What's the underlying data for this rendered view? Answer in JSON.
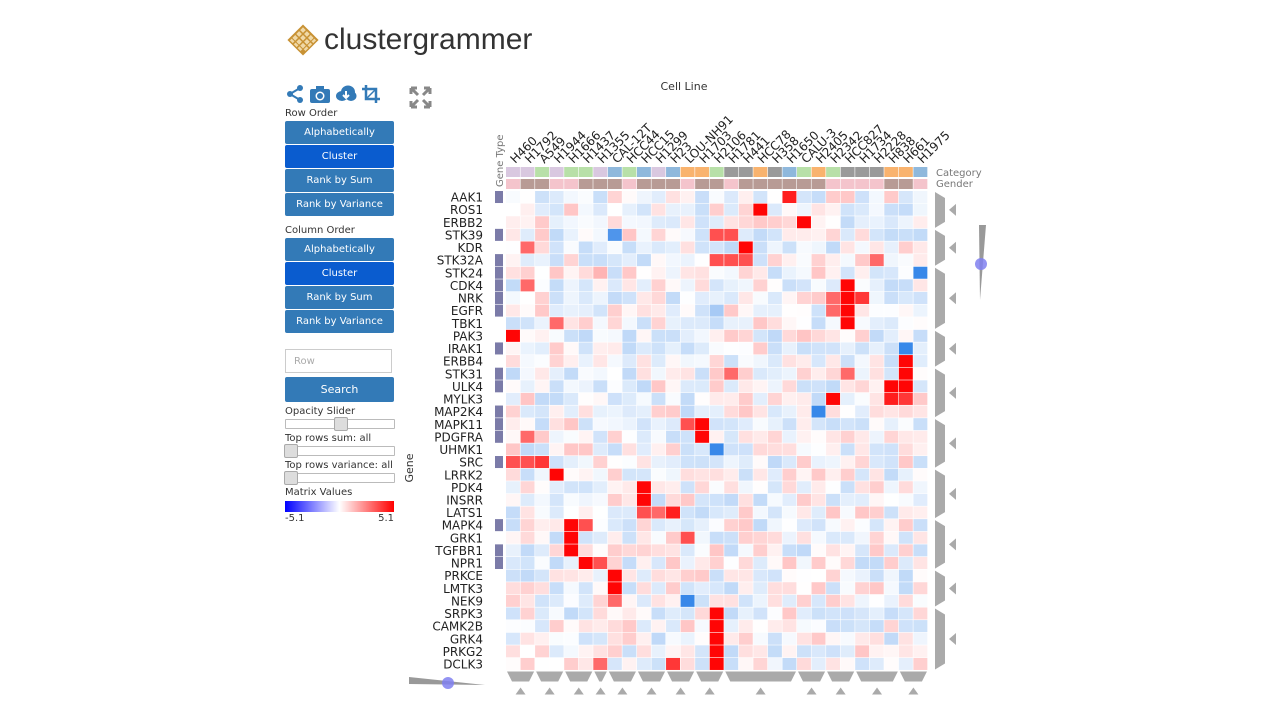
{
  "app": {
    "title": "clustergrammer"
  },
  "toolbar": {
    "icons": [
      "share-icon",
      "camera-icon",
      "cloud-download-icon",
      "crop-icon",
      "fullscreen-icon"
    ]
  },
  "sidebar": {
    "row_order_label": "Row Order",
    "row_order_buttons": [
      "Alphabetically",
      "Cluster",
      "Rank by Sum",
      "Rank by Variance"
    ],
    "row_order_active": 1,
    "col_order_label": "Column Order",
    "col_order_buttons": [
      "Alphabetically",
      "Cluster",
      "Rank by Sum",
      "Rank by Variance"
    ],
    "col_order_active": 1,
    "search_placeholder": "Row",
    "search_button": "Search",
    "opacity_label": "Opacity Slider",
    "opacity_value": 0.5,
    "top_rows_sum_label": "Top rows sum: all",
    "top_rows_variance_label": "Top rows variance: all",
    "matrix_values_label": "Matrix Values",
    "colorbar_min": "-5.1",
    "colorbar_max": "5.1"
  },
  "colors": {
    "button": "#337ab7",
    "button_active": "#0a5ccf",
    "positive": "#ff0000",
    "negative": "#1e78e6",
    "logo": "#c89234"
  },
  "heatmap": {
    "col_axis_title": "Cell Line",
    "row_axis_title": "Gene",
    "row_category_title": "Gene Type",
    "col_category_titles": [
      "Category",
      "Gender"
    ],
    "rows": [
      "AAK1",
      "ROS1",
      "ERBB2",
      "STK39",
      "KDR",
      "STK32A",
      "STK24",
      "CDK4",
      "NRK",
      "EGFR",
      "TBK1",
      "PAK3",
      "IRAK1",
      "ERBB4",
      "STK31",
      "ULK4",
      "MYLK3",
      "MAP2K4",
      "MAPK11",
      "PDGFRA",
      "UHMK1",
      "SRC",
      "LRRK2",
      "PDK4",
      "INSRR",
      "LATS1",
      "MAPK4",
      "GRK1",
      "TGFBR1",
      "NPR1",
      "PRKCE",
      "LMTK3",
      "NEK9",
      "SRPK3",
      "CAMK2B",
      "GRK4",
      "PRKG2",
      "DCLK3"
    ],
    "cols": [
      "H460",
      "H1792",
      "A549",
      "H1944",
      "H1666",
      "H1437",
      "H1355",
      "CAL-12T",
      "HCC44",
      "HCC15",
      "H1299",
      "H23",
      "LOU-NH91",
      "H1703",
      "H2106",
      "H1781",
      "H441",
      "HCC78",
      "H358",
      "H1650",
      "CALU-3",
      "H2405",
      "H2342",
      "HCC827",
      "H1734",
      "H2228",
      "H838",
      "H661",
      "H1975"
    ],
    "col_category": [
      "#d9c8e0",
      "#d9c8e0",
      "#b8e0a8",
      "#d9c8e0",
      "#b8e0a8",
      "#b8e0a8",
      "#d9c8e0",
      "#8fb8dc",
      "#b8e0a8",
      "#8fb8dc",
      "#d9c8e0",
      "#8fb8dc",
      "#f9b36e",
      "#f9b36e",
      "#b8e0a8",
      "#9a9a9a",
      "#9a9a9a",
      "#f9b36e",
      "#9a9a9a",
      "#8fb8dc",
      "#b8e0a8",
      "#f9b36e",
      "#b8e0a8",
      "#9a9a9a",
      "#9a9a9a",
      "#9a9a9a",
      "#f9b36e",
      "#f9b36e",
      "#8fb8dc"
    ],
    "col_gender": [
      "#f4c4cc",
      "#b89b95",
      "#b89b95",
      "#f4c4cc",
      "#f4c4cc",
      "#b89b95",
      "#b89b95",
      "#b89b95",
      "#f4c4cc",
      "#b89b95",
      "#b89b95",
      "#b89b95",
      "#f4c4cc",
      "#b89b95",
      "#b89b95",
      "#f4c4cc",
      "#b89b95",
      "#b89b95",
      "#b89b95",
      "#b89b95",
      "#b89b95",
      "#b89b95",
      "#f4c4cc",
      "#f4c4cc",
      "#f4c4cc",
      "#f4c4cc",
      "#b89b95",
      "#b89b95",
      "#f4c4cc"
    ],
    "row_category_marks": [
      0,
      3,
      5,
      6,
      7,
      8,
      9,
      12,
      14,
      15,
      17,
      18,
      19,
      21,
      26,
      28,
      29
    ],
    "hotspots": [
      {
        "r": 1,
        "c": 17,
        "v": 5
      },
      {
        "r": 0,
        "c": 19,
        "v": 4.5
      },
      {
        "r": 2,
        "c": 20,
        "v": 5
      },
      {
        "r": 3,
        "c": 7,
        "v": -4
      },
      {
        "r": 3,
        "c": 14,
        "v": 3.5
      },
      {
        "r": 3,
        "c": 15,
        "v": 3.5
      },
      {
        "r": 4,
        "c": 1,
        "v": 3
      },
      {
        "r": 4,
        "c": 16,
        "v": 5
      },
      {
        "r": 5,
        "c": 14,
        "v": 3.5
      },
      {
        "r": 5,
        "c": 15,
        "v": 3.5
      },
      {
        "r": 5,
        "c": 16,
        "v": 3.5
      },
      {
        "r": 5,
        "c": 25,
        "v": 3
      },
      {
        "r": 6,
        "c": 28,
        "v": -4.5
      },
      {
        "r": 6,
        "c": 6,
        "v": 1.5
      },
      {
        "r": 7,
        "c": 23,
        "v": 5
      },
      {
        "r": 7,
        "c": 1,
        "v": 3
      },
      {
        "r": 8,
        "c": 23,
        "v": 5
      },
      {
        "r": 8,
        "c": 24,
        "v": 4
      },
      {
        "r": 8,
        "c": 22,
        "v": 3
      },
      {
        "r": 9,
        "c": 23,
        "v": 5
      },
      {
        "r": 9,
        "c": 22,
        "v": 3
      },
      {
        "r": 9,
        "c": 14,
        "v": -2
      },
      {
        "r": 10,
        "c": 23,
        "v": 5
      },
      {
        "r": 10,
        "c": 3,
        "v": 3
      },
      {
        "r": 11,
        "c": 0,
        "v": 5
      },
      {
        "r": 12,
        "c": 27,
        "v": -4.5
      },
      {
        "r": 13,
        "c": 27,
        "v": 5
      },
      {
        "r": 14,
        "c": 27,
        "v": 5
      },
      {
        "r": 14,
        "c": 15,
        "v": 3
      },
      {
        "r": 14,
        "c": 23,
        "v": 3
      },
      {
        "r": 15,
        "c": 26,
        "v": 5
      },
      {
        "r": 15,
        "c": 27,
        "v": 5
      },
      {
        "r": 16,
        "c": 22,
        "v": 5
      },
      {
        "r": 16,
        "c": 26,
        "v": 4.5
      },
      {
        "r": 16,
        "c": 27,
        "v": 4
      },
      {
        "r": 17,
        "c": 21,
        "v": -4.5
      },
      {
        "r": 18,
        "c": 13,
        "v": 5
      },
      {
        "r": 18,
        "c": 12,
        "v": 3.5
      },
      {
        "r": 19,
        "c": 13,
        "v": 5
      },
      {
        "r": 19,
        "c": 1,
        "v": 3
      },
      {
        "r": 20,
        "c": 14,
        "v": -4.5
      },
      {
        "r": 21,
        "c": 0,
        "v": 3.5
      },
      {
        "r": 21,
        "c": 1,
        "v": 3.5
      },
      {
        "r": 21,
        "c": 2,
        "v": 4
      },
      {
        "r": 22,
        "c": 3,
        "v": 5
      },
      {
        "r": 23,
        "c": 9,
        "v": 5
      },
      {
        "r": 24,
        "c": 9,
        "v": 5
      },
      {
        "r": 25,
        "c": 9,
        "v": 3.5
      },
      {
        "r": 25,
        "c": 11,
        "v": 4.5
      },
      {
        "r": 25,
        "c": 10,
        "v": 3
      },
      {
        "r": 26,
        "c": 4,
        "v": 5
      },
      {
        "r": 26,
        "c": 5,
        "v": 3.5
      },
      {
        "r": 27,
        "c": 4,
        "v": 5
      },
      {
        "r": 27,
        "c": 12,
        "v": 3.5
      },
      {
        "r": 28,
        "c": 4,
        "v": 5
      },
      {
        "r": 29,
        "c": 5,
        "v": 5
      },
      {
        "r": 29,
        "c": 6,
        "v": 3.5
      },
      {
        "r": 30,
        "c": 7,
        "v": 5
      },
      {
        "r": 31,
        "c": 7,
        "v": 5
      },
      {
        "r": 32,
        "c": 12,
        "v": -4.5
      },
      {
        "r": 32,
        "c": 7,
        "v": 3
      },
      {
        "r": 33,
        "c": 14,
        "v": 5
      },
      {
        "r": 34,
        "c": 14,
        "v": 5
      },
      {
        "r": 35,
        "c": 14,
        "v": 5
      },
      {
        "r": 36,
        "c": 14,
        "v": 5
      },
      {
        "r": 37,
        "c": 14,
        "v": 5
      },
      {
        "r": 37,
        "c": 11,
        "v": 4
      },
      {
        "r": 37,
        "c": 6,
        "v": 3
      }
    ]
  }
}
